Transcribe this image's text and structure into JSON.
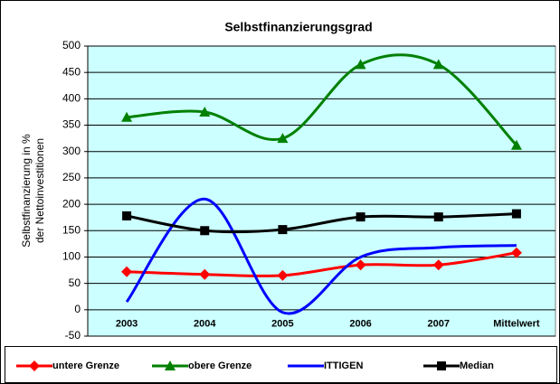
{
  "chart_data": {
    "type": "line",
    "title": "Selbstfinanzierungsgrad",
    "ylabel": [
      "Selbstfinanzierung in %",
      "der Nettoinvestitionen"
    ],
    "categories": [
      "2003",
      "2004",
      "2005",
      "2006",
      "2007",
      "Mittelwert"
    ],
    "series": [
      {
        "name": "untere Grenze",
        "color": "#ff0000",
        "marker": "diamond",
        "values": [
          72,
          67,
          65,
          85,
          85,
          108
        ]
      },
      {
        "name": "obere Grenze",
        "color": "#008000",
        "marker": "triangle",
        "values": [
          365,
          375,
          325,
          465,
          465,
          312
        ]
      },
      {
        "name": "ITTIGEN",
        "color": "#0000ff",
        "marker": "none",
        "values": [
          15,
          210,
          -5,
          100,
          118,
          122
        ]
      },
      {
        "name": "Median",
        "color": "#000000",
        "marker": "square",
        "values": [
          178,
          150,
          152,
          176,
          176,
          182
        ]
      }
    ],
    "ylim": [
      -50,
      500
    ],
    "yticks": [
      -50,
      0,
      50,
      100,
      150,
      200,
      250,
      300,
      350,
      400,
      450,
      500
    ],
    "grid": true,
    "smooth": true,
    "legend": "bottom",
    "plot_background": "#ccffff"
  }
}
